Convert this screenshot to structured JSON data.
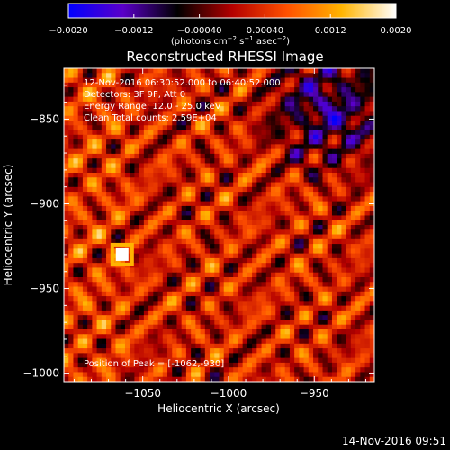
{
  "chart_data": {
    "type": "heatmap",
    "title": "Reconstructed RHESSI Image",
    "xlabel": "Heliocentric X (arcsec)",
    "ylabel": "Heliocentric Y (arcsec)",
    "xlim": [
      -1096,
      -915
    ],
    "ylim": [
      -1005,
      -820
    ],
    "x_ticks": [
      {
        "value": -1050,
        "label": "−1050"
      },
      {
        "value": -1000,
        "label": "−1000"
      },
      {
        "value": -950,
        "label": "−950"
      }
    ],
    "y_ticks": [
      {
        "value": -850,
        "label": "−850"
      },
      {
        "value": -900,
        "label": "−900"
      },
      {
        "value": -950,
        "label": "−950"
      },
      {
        "value": -1000,
        "label": "−1000"
      }
    ],
    "colorbar": {
      "range": [
        -0.002,
        0.002
      ],
      "tick_values": [
        -0.002,
        -0.0012,
        -0.0004,
        0.0004,
        0.0012,
        0.002
      ],
      "tick_labels": [
        "−0.0020",
        "−0.0012",
        "−0.00040",
        "0.00040",
        "0.0012",
        "0.0020"
      ],
      "units_text": "(photons cm",
      "units_exp1": "−2",
      "units_mid": " s",
      "units_exp2": "−1",
      "units_end": " asec",
      "units_exp3": "−2",
      "units_close": ")",
      "colors": [
        "#0000ff",
        "#5a00c8",
        "#000000",
        "#b40000",
        "#ff5000",
        "#ffb400",
        "#ffffff"
      ]
    },
    "peak": {
      "x": -1062,
      "y": -930
    },
    "grid": false
  },
  "annotations": {
    "line1": "12-Nov-2016 06:30:52.000 to 06:40:52.000",
    "line2": "Detectors: 3F 9F, Att 0",
    "line3": "Energy Range: 12.0 - 25.0 keV",
    "line4": "Clean    Total counts: 2.59E+04",
    "peak_text": "Position of Peak = [-1062,-930]"
  },
  "footer": {
    "timestamp": "14-Nov-2016 09:51"
  }
}
